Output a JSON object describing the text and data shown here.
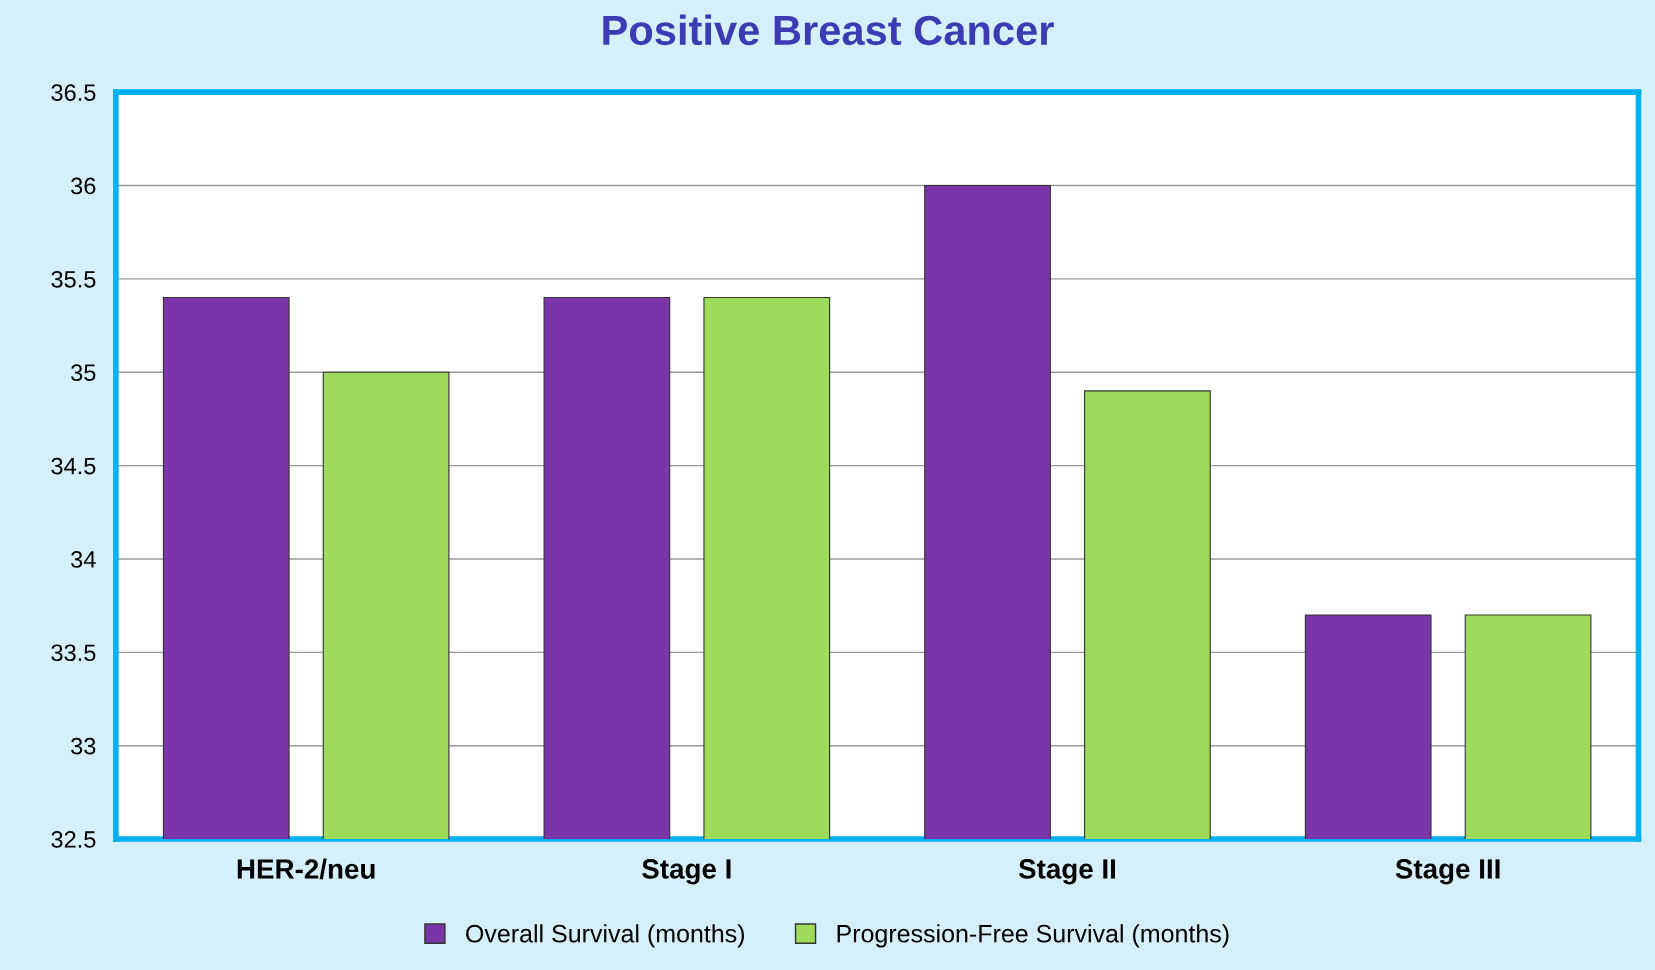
{
  "chart_data": {
    "type": "bar",
    "title": "Positive Breast Cancer",
    "categories": [
      "HER-2/neu",
      "Stage I",
      "Stage II",
      "Stage III"
    ],
    "series": [
      {
        "name": "Overall Survival (months)",
        "color": "#7a35a8",
        "values": [
          35.4,
          35.4,
          36.0,
          33.7
        ]
      },
      {
        "name": "Progression-Free Survival (months)",
        "color": "#9edb5a",
        "values": [
          35.0,
          35.4,
          34.9,
          33.7
        ]
      }
    ],
    "ylim": [
      32.5,
      36.5
    ],
    "yticks": [
      32.5,
      33,
      33.5,
      34,
      34.5,
      35,
      35.5,
      36,
      36.5
    ],
    "grid": "y",
    "legend": "bottom"
  }
}
